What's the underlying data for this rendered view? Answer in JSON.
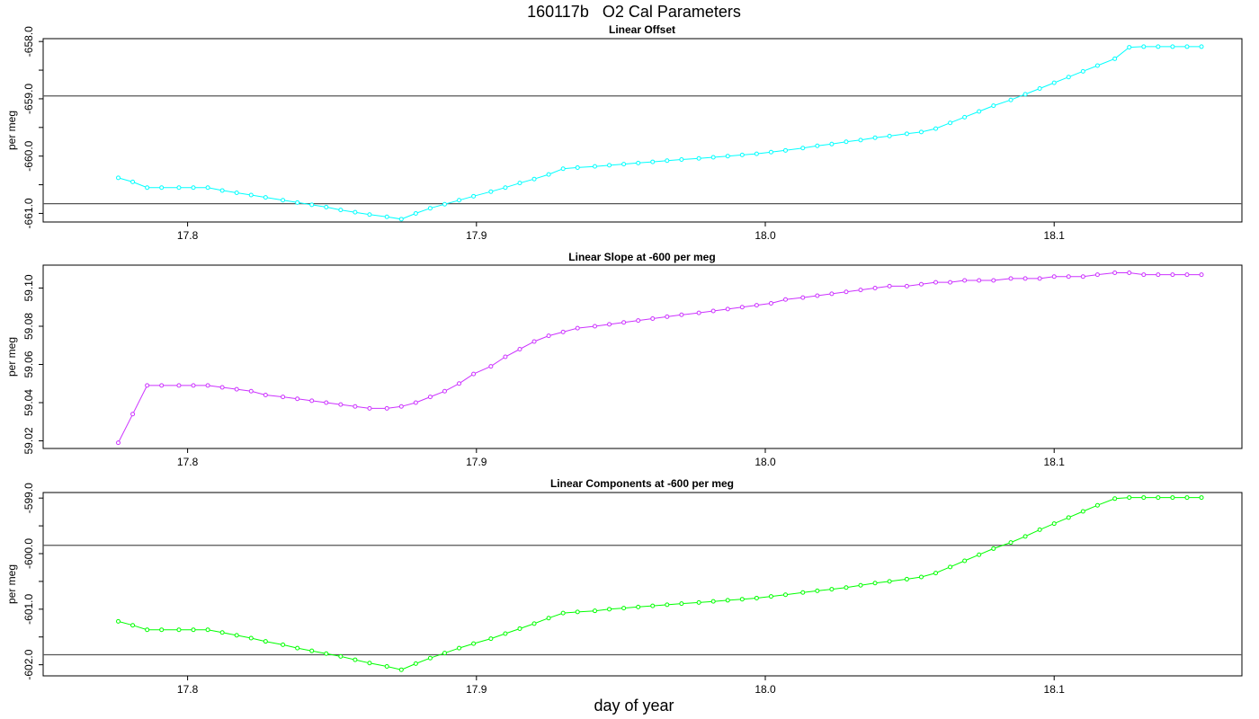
{
  "figure": {
    "title": "160117b   O2 Cal Parameters",
    "xlabel": "day of year"
  },
  "chart_data": [
    {
      "type": "line",
      "title": "Linear Offset",
      "xlabel": "",
      "ylabel": "per meg",
      "xlim": [
        17.75,
        18.165
      ],
      "ylim": [
        -661.15,
        -657.95
      ],
      "y_tick_labels": [
        "-658.0",
        "-659.0",
        "-660.0",
        "-661.0"
      ],
      "y_ticks": [
        -658.0,
        -658.5,
        -659.0,
        -659.5,
        -660.0,
        -660.5,
        -661.0
      ],
      "x_tick_labels": [
        "17.8",
        "17.9",
        "18.0",
        "18.1"
      ],
      "x_ticks": [
        17.8,
        17.9,
        18.0,
        18.1
      ],
      "y_label_rotated": true,
      "reference_lines": [
        -658.95,
        -660.83
      ],
      "color": "#00ffff",
      "x": [
        17.776,
        17.781,
        17.786,
        17.791,
        17.797,
        17.802,
        17.807,
        17.812,
        17.817,
        17.822,
        17.827,
        17.833,
        17.838,
        17.843,
        17.848,
        17.853,
        17.858,
        17.863,
        17.869,
        17.874,
        17.879,
        17.884,
        17.889,
        17.894,
        17.899,
        17.905,
        17.91,
        17.915,
        17.92,
        17.925,
        17.93,
        17.935,
        17.941,
        17.946,
        17.951,
        17.956,
        17.961,
        17.966,
        17.971,
        17.977,
        17.982,
        17.987,
        17.992,
        17.997,
        18.002,
        18.007,
        18.013,
        18.018,
        18.023,
        18.028,
        18.033,
        18.038,
        18.043,
        18.049,
        18.054,
        18.059,
        18.064,
        18.069,
        18.074,
        18.079,
        18.085,
        18.09,
        18.095,
        18.1,
        18.105,
        18.11,
        18.115,
        18.121,
        18.126,
        18.131,
        18.136,
        18.141,
        18.146,
        18.151
      ],
      "y": [
        -660.38,
        -660.45,
        -660.55,
        -660.55,
        -660.55,
        -660.55,
        -660.55,
        -660.6,
        -660.64,
        -660.68,
        -660.72,
        -660.77,
        -660.81,
        -660.85,
        -660.89,
        -660.94,
        -660.98,
        -661.02,
        -661.06,
        -661.1,
        -661.0,
        -660.91,
        -660.84,
        -660.77,
        -660.7,
        -660.62,
        -660.55,
        -660.47,
        -660.4,
        -660.32,
        -660.22,
        -660.2,
        -660.18,
        -660.16,
        -660.14,
        -660.12,
        -660.1,
        -660.08,
        -660.06,
        -660.04,
        -660.02,
        -660.0,
        -659.98,
        -659.96,
        -659.93,
        -659.9,
        -659.86,
        -659.82,
        -659.79,
        -659.75,
        -659.72,
        -659.68,
        -659.65,
        -659.61,
        -659.58,
        -659.52,
        -659.42,
        -659.32,
        -659.22,
        -659.12,
        -659.02,
        -658.92,
        -658.82,
        -658.72,
        -658.62,
        -658.52,
        -658.42,
        -658.3,
        -658.1,
        -658.09,
        -658.09,
        -658.09,
        -658.09,
        -658.09
      ]
    },
    {
      "type": "line",
      "title": "Linear Slope at -600 per meg",
      "xlabel": "",
      "ylabel": "per meg",
      "xlim": [
        17.75,
        18.165
      ],
      "ylim": [
        59.016,
        59.112
      ],
      "y_tick_labels": [
        "59.02",
        "59.04",
        "59.06",
        "59.08",
        "59.10"
      ],
      "y_ticks": [
        59.02,
        59.04,
        59.06,
        59.08,
        59.1
      ],
      "x_tick_labels": [
        "17.8",
        "17.9",
        "18.0",
        "18.1"
      ],
      "x_ticks": [
        17.8,
        17.9,
        18.0,
        18.1
      ],
      "y_label_rotated": true,
      "reference_lines": [],
      "color": "#cc33ff",
      "x": [
        17.776,
        17.781,
        17.786,
        17.791,
        17.797,
        17.802,
        17.807,
        17.812,
        17.817,
        17.822,
        17.827,
        17.833,
        17.838,
        17.843,
        17.848,
        17.853,
        17.858,
        17.863,
        17.869,
        17.874,
        17.879,
        17.884,
        17.889,
        17.894,
        17.899,
        17.905,
        17.91,
        17.915,
        17.92,
        17.925,
        17.93,
        17.935,
        17.941,
        17.946,
        17.951,
        17.956,
        17.961,
        17.966,
        17.971,
        17.977,
        17.982,
        17.987,
        17.992,
        17.997,
        18.002,
        18.007,
        18.013,
        18.018,
        18.023,
        18.028,
        18.033,
        18.038,
        18.043,
        18.049,
        18.054,
        18.059,
        18.064,
        18.069,
        18.074,
        18.079,
        18.085,
        18.09,
        18.095,
        18.1,
        18.105,
        18.11,
        18.115,
        18.121,
        18.126,
        18.131,
        18.136,
        18.141,
        18.146,
        18.151
      ],
      "y": [
        59.019,
        59.034,
        59.049,
        59.049,
        59.049,
        59.049,
        59.049,
        59.048,
        59.047,
        59.046,
        59.044,
        59.043,
        59.042,
        59.041,
        59.04,
        59.039,
        59.038,
        59.037,
        59.037,
        59.038,
        59.04,
        59.043,
        59.046,
        59.05,
        59.055,
        59.059,
        59.064,
        59.068,
        59.072,
        59.075,
        59.077,
        59.079,
        59.08,
        59.081,
        59.082,
        59.083,
        59.084,
        59.085,
        59.086,
        59.087,
        59.088,
        59.089,
        59.09,
        59.091,
        59.092,
        59.094,
        59.095,
        59.096,
        59.097,
        59.098,
        59.099,
        59.1,
        59.101,
        59.101,
        59.102,
        59.103,
        59.103,
        59.104,
        59.104,
        59.104,
        59.105,
        59.105,
        59.105,
        59.106,
        59.106,
        59.106,
        59.107,
        59.108,
        59.108,
        59.107,
        59.107,
        59.107,
        59.107,
        59.107
      ]
    },
    {
      "type": "line",
      "title": "Linear Components at -600 per meg",
      "xlabel": "day of year",
      "ylabel": "per meg",
      "xlim": [
        17.75,
        18.165
      ],
      "ylim": [
        -602.2,
        -598.9
      ],
      "y_tick_labels": [
        "-599.0",
        "-600.0",
        "-601.0",
        "-602.0"
      ],
      "y_ticks": [
        -599.0,
        -599.5,
        -600.0,
        -600.5,
        -601.0,
        -601.5,
        -602.0
      ],
      "x_tick_labels": [
        "17.8",
        "17.9",
        "18.0",
        "18.1"
      ],
      "x_ticks": [
        17.8,
        17.9,
        18.0,
        18.1
      ],
      "y_label_rotated": true,
      "reference_lines": [
        -599.85,
        -601.82
      ],
      "color": "#00ff00",
      "x": [
        17.776,
        17.781,
        17.786,
        17.791,
        17.797,
        17.802,
        17.807,
        17.812,
        17.817,
        17.822,
        17.827,
        17.833,
        17.838,
        17.843,
        17.848,
        17.853,
        17.858,
        17.863,
        17.869,
        17.874,
        17.879,
        17.884,
        17.889,
        17.894,
        17.899,
        17.905,
        17.91,
        17.915,
        17.92,
        17.925,
        17.93,
        17.935,
        17.941,
        17.946,
        17.951,
        17.956,
        17.961,
        17.966,
        17.971,
        17.977,
        17.982,
        17.987,
        17.992,
        17.997,
        18.002,
        18.007,
        18.013,
        18.018,
        18.023,
        18.028,
        18.033,
        18.038,
        18.043,
        18.049,
        18.054,
        18.059,
        18.064,
        18.069,
        18.074,
        18.079,
        18.085,
        18.09,
        18.095,
        18.1,
        18.105,
        18.11,
        18.115,
        18.121,
        18.126,
        18.131,
        18.136,
        18.141,
        18.146,
        18.151
      ],
      "y": [
        -601.22,
        -601.29,
        -601.37,
        -601.37,
        -601.37,
        -601.37,
        -601.37,
        -601.42,
        -601.47,
        -601.52,
        -601.58,
        -601.64,
        -601.7,
        -601.75,
        -601.8,
        -601.85,
        -601.91,
        -601.97,
        -602.03,
        -602.09,
        -601.98,
        -601.88,
        -601.79,
        -601.7,
        -601.62,
        -601.53,
        -601.44,
        -601.35,
        -601.26,
        -601.16,
        -601.07,
        -601.05,
        -601.03,
        -601.0,
        -600.98,
        -600.96,
        -600.94,
        -600.92,
        -600.9,
        -600.88,
        -600.86,
        -600.84,
        -600.82,
        -600.8,
        -600.77,
        -600.74,
        -600.7,
        -600.67,
        -600.64,
        -600.61,
        -600.57,
        -600.53,
        -600.5,
        -600.46,
        -600.42,
        -600.35,
        -600.24,
        -600.13,
        -600.02,
        -599.91,
        -599.8,
        -599.69,
        -599.57,
        -599.46,
        -599.35,
        -599.24,
        -599.13,
        -599.01,
        -598.99,
        -598.99,
        -598.99,
        -598.99,
        -598.99,
        -598.99
      ]
    }
  ]
}
